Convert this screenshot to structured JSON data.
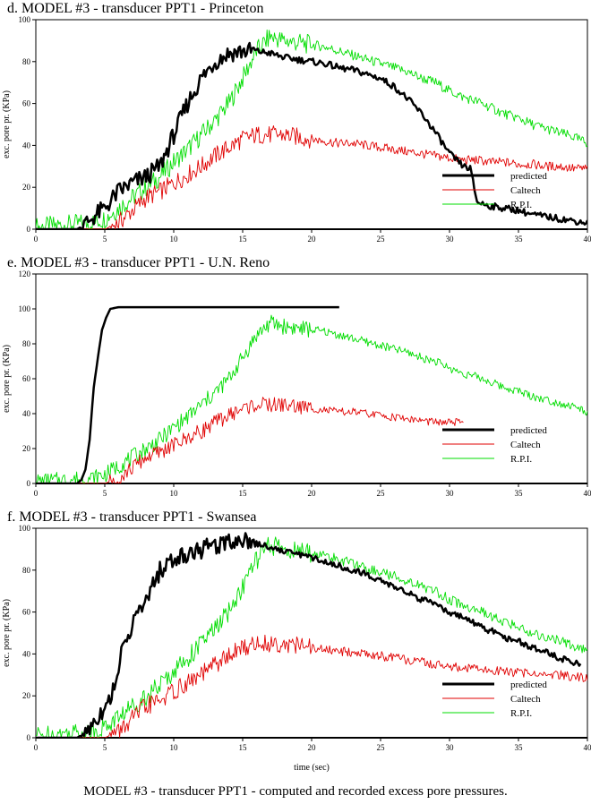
{
  "figure": {
    "caption": "MODEL #3 - transducer PPT1 - computed and recorded excess pore pressures."
  },
  "colors": {
    "predicted": "#000000",
    "caltech": "#e00000",
    "rpi": "#00dd00"
  },
  "chart_data": [
    {
      "type": "line",
      "title": "d. MODEL #3 - transducer PPT1 - Princeton",
      "xlabel": "",
      "ylabel": "exc. pore pr. (KPa)",
      "xlim": [
        0,
        40
      ],
      "ylim": [
        0,
        100
      ],
      "xticks": [
        "0",
        "5",
        "10",
        "15",
        "20",
        "25",
        "30",
        "35",
        "40"
      ],
      "yticks": [
        "0",
        "20",
        "40",
        "60",
        "80",
        "100"
      ],
      "legend": [
        "predicted",
        "Caltech",
        "R.P.I."
      ],
      "legend_position": "bottom-right",
      "series": [
        {
          "name": "predicted",
          "x": [
            0,
            3,
            3.5,
            4,
            5,
            6,
            7,
            8,
            9,
            10,
            11,
            12,
            13,
            14,
            15,
            16,
            17,
            18,
            19,
            20,
            21,
            22,
            23,
            24,
            25,
            26,
            27,
            28,
            29,
            30,
            31,
            31.5,
            32,
            33,
            34,
            35,
            36,
            37,
            38,
            39,
            40
          ],
          "y": [
            0,
            0,
            2,
            5,
            10,
            18,
            22,
            25,
            30,
            45,
            60,
            72,
            80,
            84,
            85,
            85,
            84,
            82,
            81,
            80,
            79,
            77,
            76,
            74,
            72,
            68,
            62,
            55,
            46,
            36,
            30,
            29,
            13,
            11,
            10,
            9,
            7,
            6,
            5,
            4,
            3
          ]
        },
        {
          "name": "Caltech",
          "x": [
            0,
            5,
            6,
            7,
            8,
            9,
            10,
            11,
            12,
            13,
            14,
            15,
            16,
            17,
            18,
            19,
            20,
            21,
            22,
            23,
            24,
            25,
            26,
            27,
            28,
            29,
            30,
            31,
            32,
            33,
            34,
            35,
            36,
            37,
            38,
            39,
            40
          ],
          "y": [
            0,
            0,
            3,
            9,
            15,
            18,
            22,
            26,
            30,
            35,
            39,
            43,
            45,
            45,
            45,
            44,
            43,
            42,
            41,
            41,
            40,
            39,
            38,
            37,
            36,
            35,
            34,
            33,
            33,
            32,
            32,
            31,
            31,
            30,
            30,
            29,
            29
          ]
        },
        {
          "name": "R.P.I.",
          "x": [
            0,
            2,
            4,
            5,
            6,
            7,
            8,
            9,
            10,
            11,
            12,
            13,
            14,
            15,
            16,
            17,
            18,
            19,
            20,
            21,
            22,
            23,
            24,
            25,
            26,
            27,
            28,
            29,
            30,
            31,
            32,
            33,
            34,
            35,
            36,
            37,
            38,
            39,
            40
          ],
          "y": [
            1,
            2,
            3,
            5,
            10,
            15,
            20,
            25,
            32,
            38,
            45,
            52,
            60,
            72,
            85,
            92,
            90,
            89,
            88,
            87,
            85,
            83,
            81,
            79,
            77,
            75,
            72,
            70,
            66,
            63,
            61,
            58,
            55,
            53,
            50,
            48,
            46,
            44,
            41
          ]
        }
      ]
    },
    {
      "type": "line",
      "title": "e. MODEL #3 - transducer PPT1 - U.N. Reno",
      "xlabel": "",
      "ylabel": "exc. pore pr. (KPa)",
      "xlim": [
        0,
        40
      ],
      "ylim": [
        0,
        120
      ],
      "xticks": [
        "0",
        "5",
        "10",
        "15",
        "20",
        "25",
        "30",
        "35",
        "40"
      ],
      "yticks": [
        "0",
        "20",
        "40",
        "60",
        "80",
        "100",
        "120"
      ],
      "legend": [
        "predicted",
        "Caltech",
        "R.P.I."
      ],
      "legend_position": "bottom-right",
      "series": [
        {
          "name": "predicted",
          "x": [
            0,
            3,
            3.3,
            3.6,
            3.9,
            4.2,
            4.5,
            4.8,
            5.1,
            5.4,
            6,
            7,
            10,
            15,
            20,
            22
          ],
          "y": [
            0,
            0,
            2,
            8,
            25,
            55,
            72,
            88,
            95,
            100,
            101,
            101,
            101,
            101,
            101,
            101
          ]
        },
        {
          "name": "Caltech",
          "x": [
            0,
            5,
            6,
            7,
            8,
            9,
            10,
            11,
            12,
            13,
            14,
            15,
            16,
            17,
            18,
            19,
            20,
            21,
            22,
            23,
            24,
            25,
            26,
            27,
            28,
            29,
            30,
            31
          ],
          "y": [
            0,
            0,
            3,
            9,
            15,
            18,
            22,
            26,
            30,
            35,
            39,
            43,
            45,
            45,
            45,
            44,
            43,
            42,
            41,
            41,
            40,
            39,
            38,
            37,
            36,
            35,
            35,
            35
          ]
        },
        {
          "name": "R.P.I.",
          "x": [
            0,
            2,
            4,
            5,
            6,
            7,
            8,
            9,
            10,
            11,
            12,
            13,
            14,
            15,
            16,
            17,
            18,
            19,
            20,
            21,
            22,
            23,
            24,
            25,
            26,
            27,
            28,
            29,
            30,
            31,
            32,
            33,
            34,
            35,
            36,
            37,
            38,
            39,
            40
          ],
          "y": [
            1,
            2,
            3,
            5,
            10,
            15,
            20,
            25,
            32,
            38,
            45,
            52,
            60,
            72,
            85,
            92,
            90,
            89,
            88,
            87,
            85,
            83,
            81,
            79,
            77,
            75,
            72,
            70,
            66,
            63,
            61,
            58,
            55,
            53,
            50,
            48,
            46,
            44,
            41
          ]
        }
      ]
    },
    {
      "type": "line",
      "title": "f. MODEL #3 - transducer PPT1 - Swansea",
      "xlabel": "time (sec)",
      "ylabel": "exc. pore pr. (KPa)",
      "xlim": [
        0,
        40
      ],
      "ylim": [
        0,
        100
      ],
      "xticks": [
        "0",
        "5",
        "10",
        "15",
        "20",
        "25",
        "30",
        "35",
        "40"
      ],
      "yticks": [
        "0",
        "20",
        "40",
        "60",
        "80",
        "100"
      ],
      "legend": [
        "predicted",
        "Caltech",
        "R.P.I."
      ],
      "legend_position": "bottom-right",
      "series": [
        {
          "name": "predicted",
          "x": [
            0,
            3,
            3.5,
            4,
            4.5,
            5,
            5.5,
            6,
            6.5,
            7,
            8,
            9,
            10,
            11,
            12,
            13,
            14,
            15,
            16,
            17,
            18,
            19,
            20,
            21,
            22,
            23,
            24,
            25,
            26,
            27,
            28,
            29,
            30,
            31,
            32,
            33,
            34,
            35,
            36,
            37,
            38,
            39,
            39.5
          ],
          "y": [
            0,
            0,
            2,
            6,
            10,
            15,
            20,
            35,
            45,
            55,
            65,
            80,
            85,
            88,
            90,
            92,
            94,
            95,
            93,
            91,
            89,
            88,
            86,
            84,
            82,
            80,
            78,
            75,
            72,
            69,
            66,
            63,
            60,
            57,
            54,
            51,
            48,
            46,
            43,
            41,
            38,
            36,
            35
          ]
        },
        {
          "name": "Caltech",
          "x": [
            0,
            5,
            6,
            7,
            8,
            9,
            10,
            11,
            12,
            13,
            14,
            15,
            16,
            17,
            18,
            19,
            20,
            21,
            22,
            23,
            24,
            25,
            26,
            27,
            28,
            29,
            30,
            31,
            32,
            33,
            34,
            35,
            36,
            37,
            38,
            39,
            40
          ],
          "y": [
            0,
            0,
            3,
            9,
            15,
            18,
            22,
            26,
            30,
            35,
            39,
            43,
            45,
            45,
            45,
            44,
            43,
            42,
            41,
            41,
            40,
            39,
            38,
            37,
            36,
            35,
            34,
            33,
            33,
            32,
            32,
            31,
            31,
            30,
            30,
            29,
            29
          ]
        },
        {
          "name": "R.P.I.",
          "x": [
            0,
            2,
            4,
            5,
            6,
            7,
            8,
            9,
            10,
            11,
            12,
            13,
            14,
            15,
            16,
            17,
            18,
            19,
            20,
            21,
            22,
            23,
            24,
            25,
            26,
            27,
            28,
            29,
            30,
            31,
            32,
            33,
            34,
            35,
            36,
            37,
            38,
            39,
            40
          ],
          "y": [
            1,
            2,
            3,
            5,
            10,
            15,
            20,
            25,
            32,
            38,
            45,
            52,
            60,
            72,
            85,
            92,
            90,
            89,
            88,
            87,
            85,
            83,
            81,
            79,
            77,
            75,
            72,
            70,
            66,
            63,
            61,
            58,
            55,
            53,
            50,
            48,
            46,
            44,
            41
          ]
        }
      ]
    }
  ]
}
